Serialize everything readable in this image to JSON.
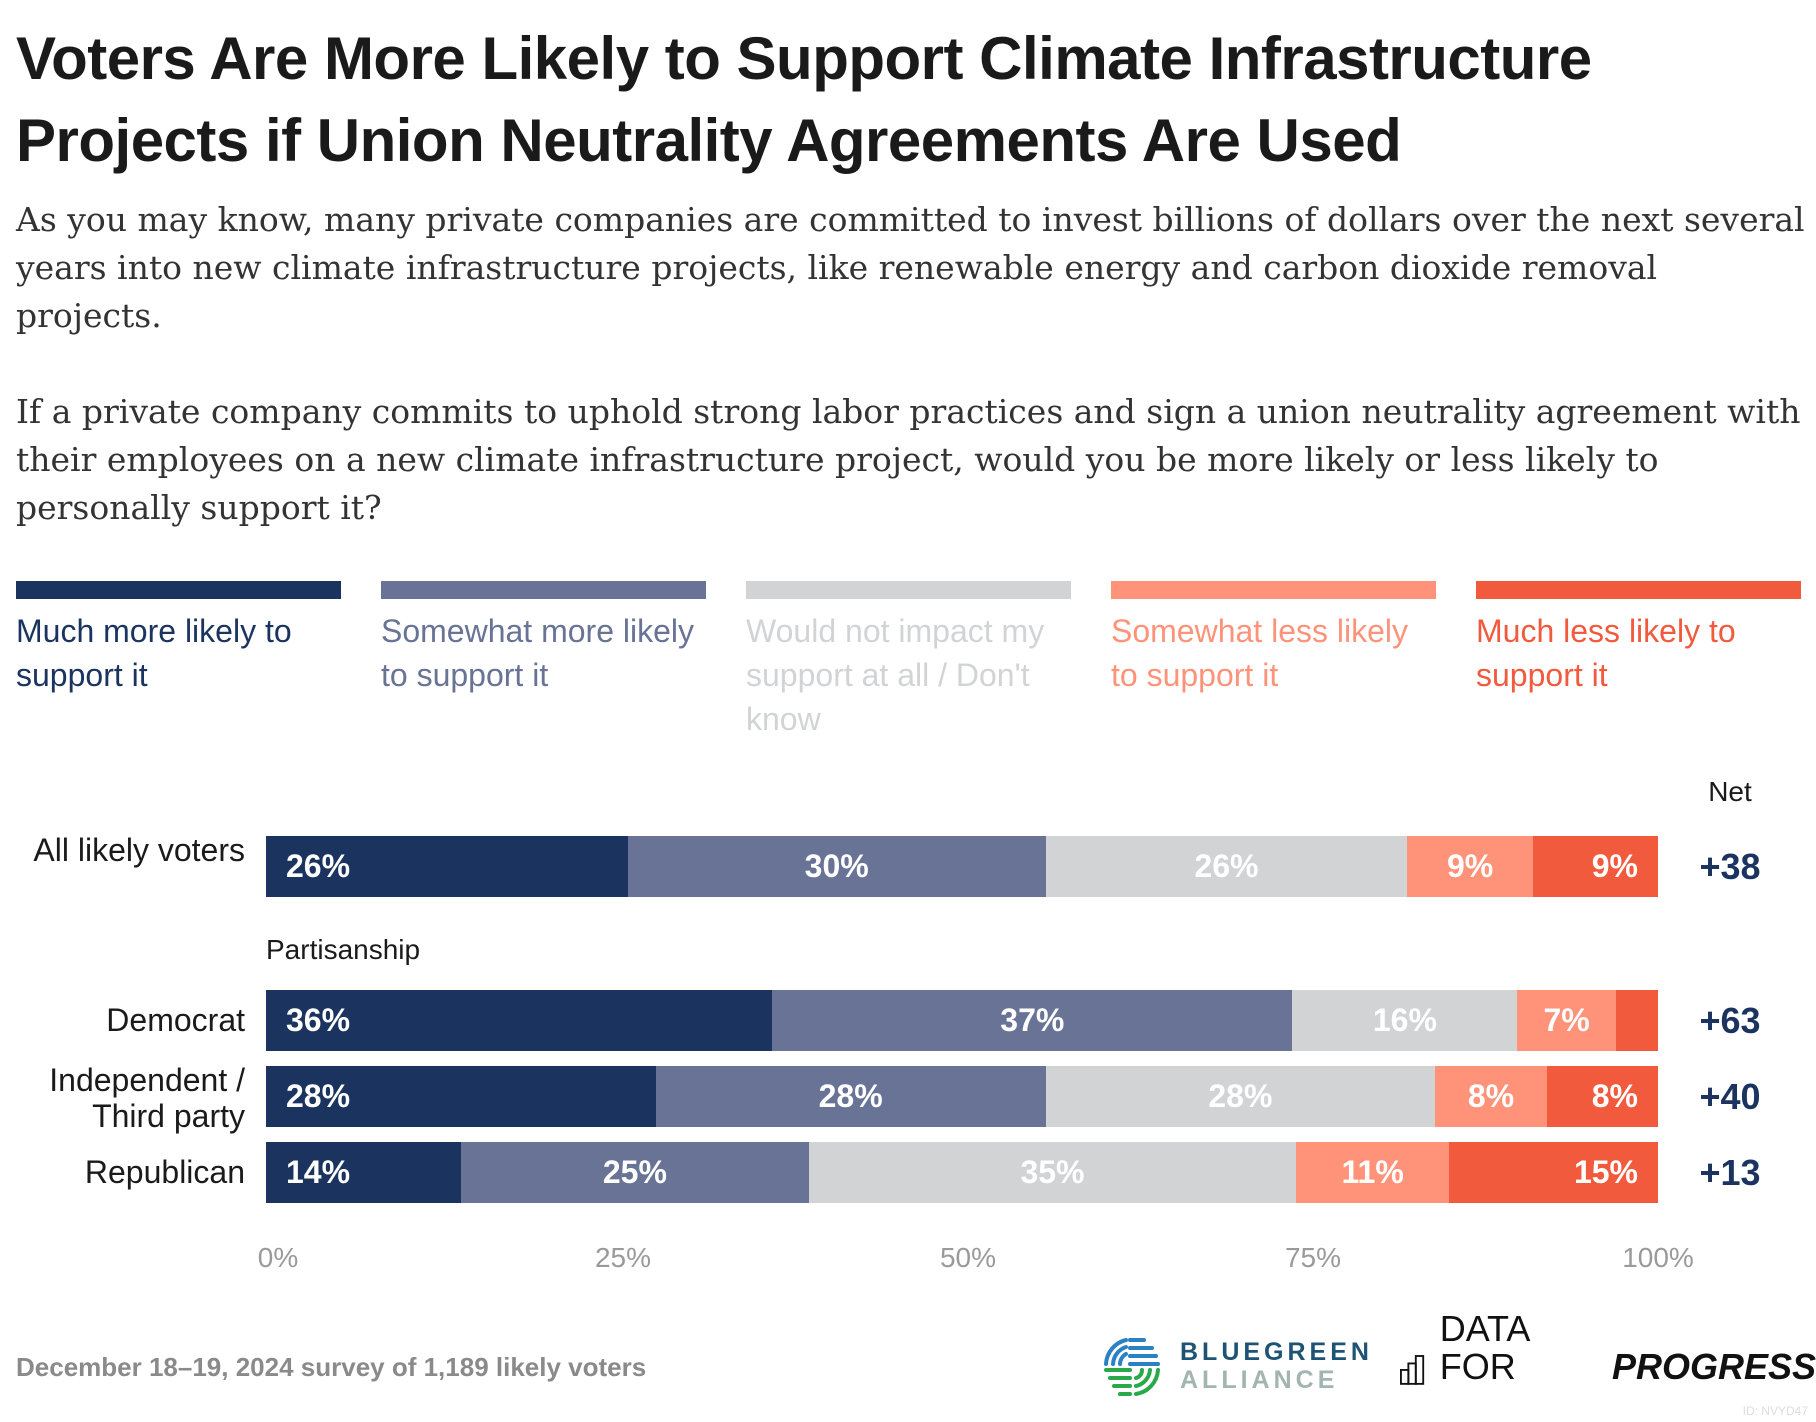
{
  "title": "Voters Are More Likely to Support Climate Infrastructure Projects if Union Neutrality Agreements Are Used",
  "subtitle": [
    "As you may know, many private companies are committed to invest billions of dollars over the next several years into new climate infrastructure projects, like renewable energy and carbon dioxide removal projects.",
    "If a private company commits to uphold strong labor practices and sign a union neutrality agreement with their employees on a new climate infrastructure project, would you be more likely or less likely to personally support it?"
  ],
  "chart_data": {
    "type": "bar",
    "orientation": "horizontal-stacked",
    "categories": [
      "All likely voters",
      "Democrat",
      "Independent / Third party",
      "Republican"
    ],
    "group_label": "Partisanship",
    "series": [
      {
        "name": "Much more likely to support it",
        "color": "#1b345f",
        "values": [
          26,
          36,
          28,
          14
        ]
      },
      {
        "name": "Somewhat more likely to support it",
        "color": "#687395",
        "values": [
          30,
          37,
          28,
          25
        ]
      },
      {
        "name": "Would not impact my support at all / Don't know",
        "color": "#d2d3d5",
        "values": [
          26,
          16,
          28,
          35
        ]
      },
      {
        "name": "Somewhat less likely to support it",
        "color": "#fe937a",
        "values": [
          9,
          7,
          8,
          11
        ]
      },
      {
        "name": "Much less likely to support it",
        "color": "#f15a3d",
        "values": [
          9,
          3,
          8,
          15
        ]
      }
    ],
    "labels_shown": [
      [
        true,
        true,
        true,
        true,
        true
      ],
      [
        true,
        true,
        true,
        true,
        false
      ],
      [
        true,
        true,
        true,
        true,
        true
      ],
      [
        true,
        true,
        true,
        true,
        true
      ]
    ],
    "net_label": "Net",
    "net": [
      "+38",
      "+63",
      "+40",
      "+13"
    ],
    "xticks": [
      "0%",
      "25%",
      "50%",
      "75%",
      "100%"
    ],
    "xlim": [
      0,
      100
    ],
    "legend_placement": "top"
  },
  "footer": "December 18–19, 2024 survey of 1,189 likely voters",
  "logos": {
    "bluegreen": [
      "BLUEGREEN",
      "ALLIANCE"
    ],
    "dfp": [
      "DATA FOR",
      "PROGRESS"
    ]
  },
  "id": "ID: NVYD47"
}
